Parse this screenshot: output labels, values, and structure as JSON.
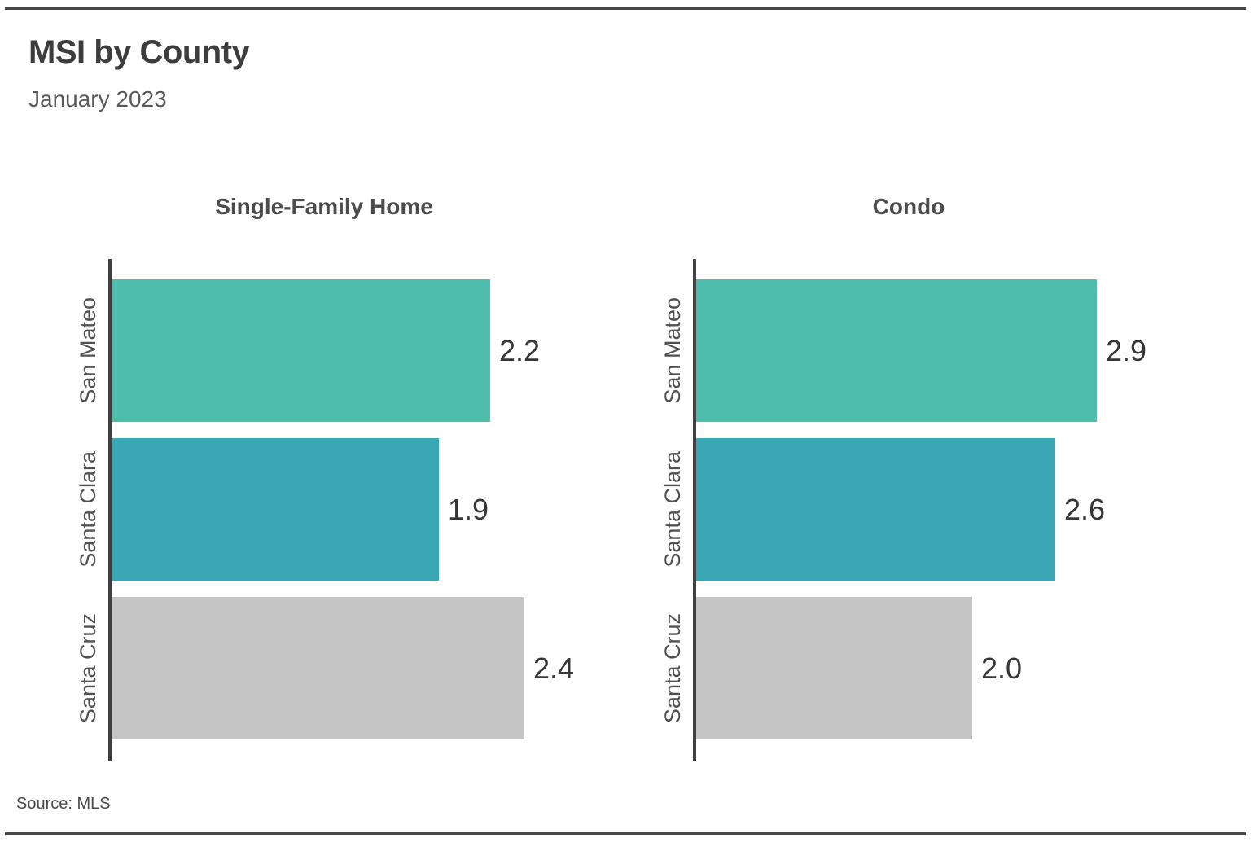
{
  "header": {
    "title": "MSI by County",
    "subtitle": "January 2023"
  },
  "footer": {
    "source": "Source: MLS"
  },
  "colors": {
    "bar_teal_green": "#4ebdab",
    "bar_teal_blue": "#3aa7b4",
    "bar_gray": "#c5c5c5",
    "axis": "#3f3f3f",
    "rule": "#474747"
  },
  "chart_data": [
    {
      "type": "bar",
      "orientation": "horizontal",
      "title": "Single-Family Home",
      "categories": [
        "San Mateo",
        "Santa Clara",
        "Santa Cruz"
      ],
      "values": [
        2.2,
        1.9,
        2.4
      ],
      "value_labels": [
        "2.2",
        "1.9",
        "2.4"
      ],
      "xlim": [
        0,
        2.65
      ],
      "bar_colors": [
        "#4ebdab",
        "#3aa7b4",
        "#c5c5c5"
      ],
      "grid": false,
      "legend": "none"
    },
    {
      "type": "bar",
      "orientation": "horizontal",
      "title": "Condo",
      "categories": [
        "San Mateo",
        "Santa Clara",
        "Santa Cruz"
      ],
      "values": [
        2.9,
        2.6,
        2.0
      ],
      "value_labels": [
        "2.9",
        "2.6",
        "2.0"
      ],
      "xlim": [
        0,
        3.3
      ],
      "bar_colors": [
        "#4ebdab",
        "#3aa7b4",
        "#c5c5c5"
      ],
      "grid": false,
      "legend": "none"
    }
  ]
}
